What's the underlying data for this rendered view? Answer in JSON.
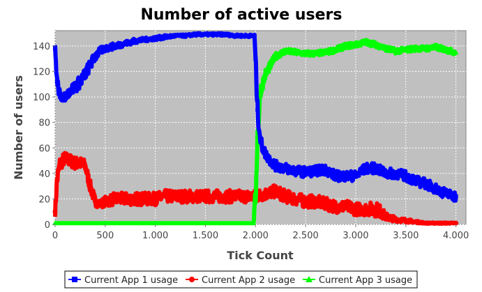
{
  "chart_data": {
    "type": "line",
    "title": "Number of active users",
    "xlabel": "Tick Count",
    "ylabel": "Number of users",
    "xlim": [
      0,
      4100
    ],
    "ylim": [
      0,
      152
    ],
    "xticks": [
      0,
      500,
      1000,
      1500,
      2000,
      2500,
      3000,
      3500,
      4000
    ],
    "xtick_labels": [
      "0",
      "500",
      "1.000",
      "1.500",
      "2.000",
      "2.500",
      "3.000",
      "3.500",
      "4.000"
    ],
    "yticks": [
      0,
      20,
      40,
      60,
      80,
      100,
      120,
      140
    ],
    "ytick_labels": [
      "0",
      "20",
      "40",
      "60",
      "80",
      "100",
      "120",
      "140"
    ],
    "grid": true,
    "legend_position": "bottom",
    "plot_background": "#c0c0c0",
    "series": [
      {
        "name": "Current App 1 usage",
        "color": "#0000ff",
        "marker": "square",
        "x": [
          0,
          20,
          50,
          100,
          150,
          200,
          250,
          300,
          350,
          400,
          450,
          500,
          600,
          700,
          800,
          900,
          1000,
          1100,
          1200,
          1300,
          1400,
          1500,
          1600,
          1700,
          1800,
          1900,
          1990,
          2000,
          2020,
          2050,
          2100,
          2150,
          2200,
          2300,
          2400,
          2500,
          2600,
          2700,
          2800,
          2900,
          3000,
          3100,
          3200,
          3300,
          3400,
          3500,
          3600,
          3700,
          3800,
          3900,
          4000
        ],
        "y": [
          138,
          112,
          100,
          100,
          105,
          108,
          112,
          118,
          125,
          132,
          136,
          138,
          140,
          142,
          144,
          145,
          146,
          147,
          148,
          148,
          149,
          149,
          149,
          149,
          148,
          148,
          148,
          130,
          90,
          65,
          55,
          50,
          46,
          44,
          42,
          41,
          42,
          43,
          38,
          38,
          38,
          44,
          44,
          40,
          40,
          38,
          34,
          32,
          28,
          24,
          22
        ],
        "spread": [
          6,
          10,
          8,
          6,
          8,
          10,
          10,
          10,
          9,
          8,
          6,
          5,
          5,
          4,
          4,
          3,
          3,
          3,
          2,
          2,
          2,
          2,
          2,
          2,
          2,
          2,
          2,
          10,
          15,
          10,
          8,
          8,
          8,
          8,
          8,
          8,
          8,
          8,
          8,
          8,
          8,
          8,
          8,
          8,
          8,
          8,
          8,
          8,
          8,
          8,
          8
        ]
      },
      {
        "name": "Current App 2 usage",
        "color": "#ff0000",
        "marker": "circle",
        "x": [
          0,
          20,
          50,
          100,
          150,
          200,
          250,
          300,
          350,
          400,
          450,
          500,
          600,
          700,
          800,
          900,
          1000,
          1100,
          1200,
          1300,
          1400,
          1500,
          1600,
          1700,
          1800,
          1900,
          2000,
          2100,
          2200,
          2300,
          2400,
          2500,
          2600,
          2700,
          2800,
          2900,
          3000,
          3100,
          3200,
          3250,
          3300,
          3400,
          3500,
          3600,
          3700,
          3800,
          3900,
          4000
        ],
        "y": [
          10,
          35,
          48,
          52,
          50,
          48,
          48,
          46,
          30,
          18,
          16,
          18,
          20,
          20,
          20,
          20,
          20,
          22,
          22,
          22,
          22,
          22,
          22,
          22,
          22,
          22,
          22,
          24,
          26,
          22,
          20,
          18,
          18,
          16,
          14,
          14,
          12,
          12,
          12,
          10,
          6,
          4,
          3,
          2,
          1,
          1,
          1,
          1
        ],
        "spread": [
          8,
          14,
          12,
          10,
          10,
          10,
          10,
          10,
          10,
          8,
          6,
          8,
          10,
          10,
          10,
          10,
          10,
          10,
          10,
          10,
          10,
          10,
          10,
          10,
          10,
          10,
          10,
          10,
          10,
          10,
          10,
          10,
          10,
          10,
          10,
          10,
          10,
          10,
          12,
          10,
          6,
          4,
          3,
          2,
          1,
          1,
          1,
          1
        ]
      },
      {
        "name": "Current App 3 usage",
        "color": "#00ff00",
        "marker": "triangle",
        "x": [
          0,
          500,
          1000,
          1500,
          1980,
          2000,
          2020,
          2050,
          2100,
          2150,
          2200,
          2300,
          2400,
          2500,
          2600,
          2700,
          2800,
          2900,
          3000,
          3100,
          3200,
          3300,
          3400,
          3500,
          3600,
          3700,
          3800,
          3900,
          4000
        ],
        "y": [
          1,
          1,
          1,
          1,
          1,
          20,
          70,
          105,
          118,
          125,
          132,
          136,
          135,
          134,
          134,
          135,
          137,
          140,
          141,
          143,
          141,
          138,
          136,
          137,
          138,
          138,
          139,
          137,
          135
        ],
        "spread": [
          0,
          0,
          0,
          0,
          0,
          20,
          20,
          10,
          8,
          6,
          5,
          4,
          4,
          4,
          4,
          4,
          4,
          4,
          4,
          4,
          4,
          4,
          4,
          4,
          4,
          4,
          4,
          4,
          4
        ]
      }
    ]
  }
}
